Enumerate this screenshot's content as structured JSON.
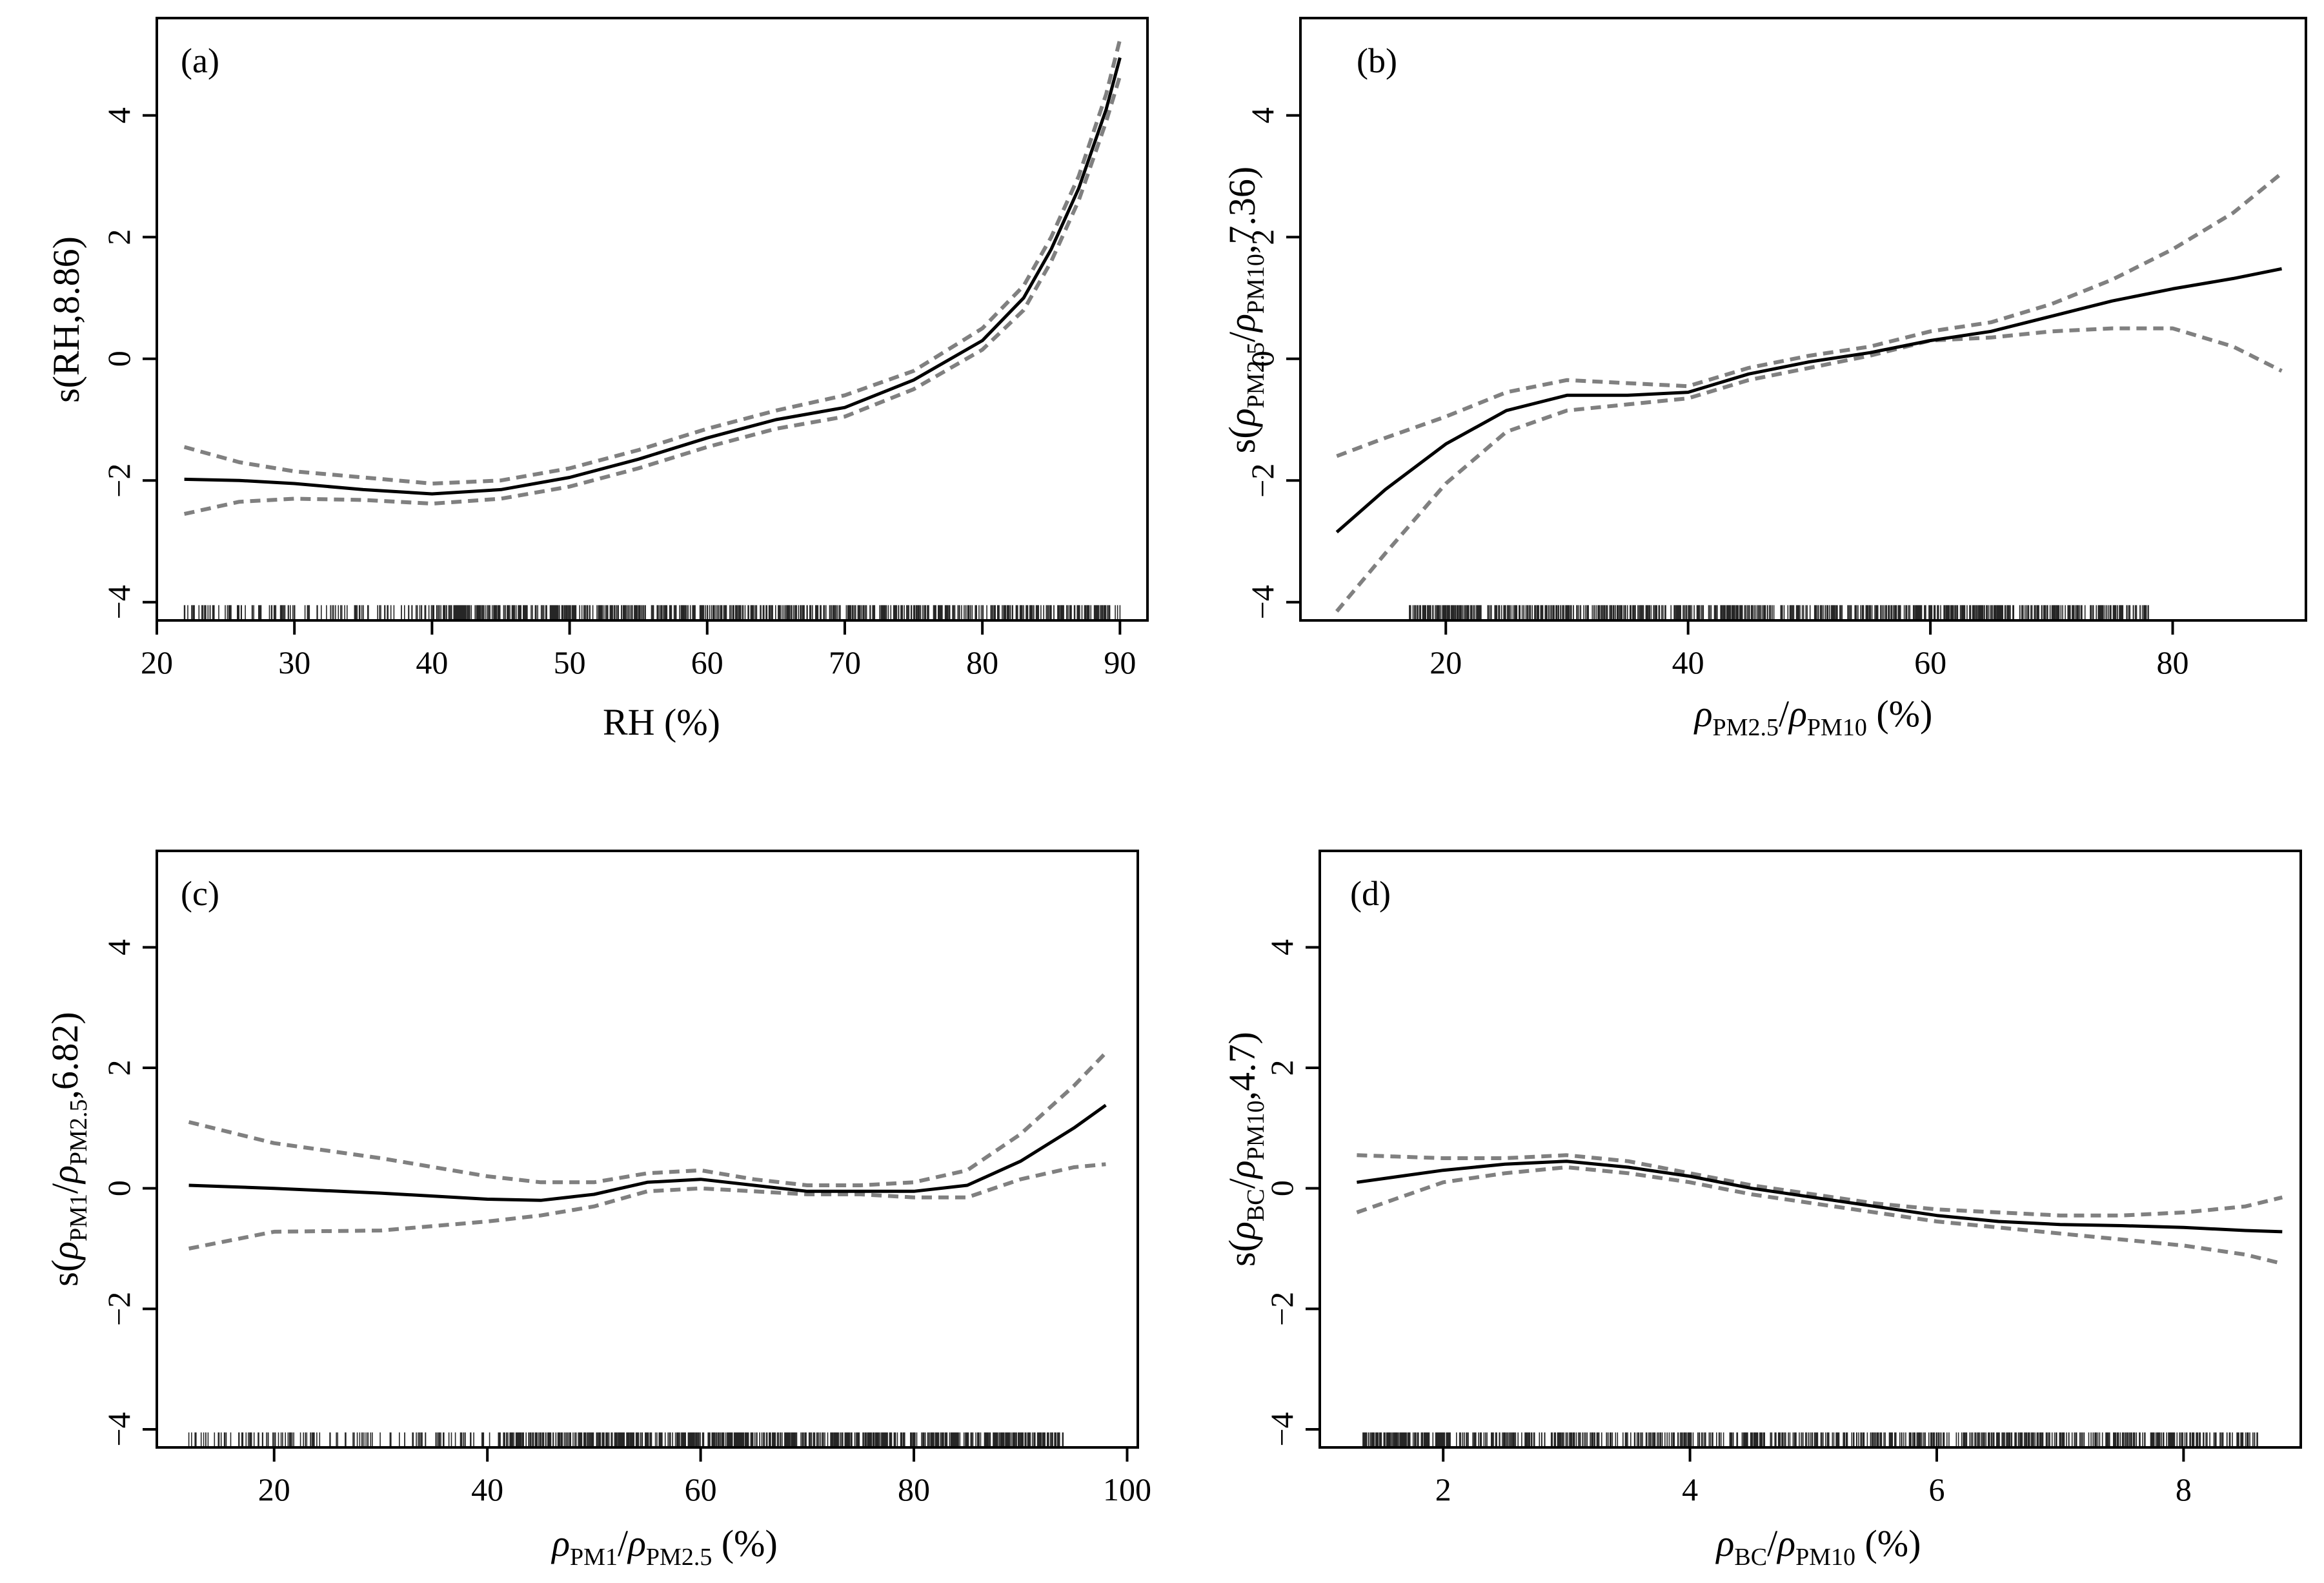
{
  "figure": {
    "description": "GAM smooth partial effect plots, four panels"
  },
  "chart_data": [
    {
      "type": "line",
      "panel": "(a)",
      "ylabel": "s(RH,8.86)",
      "xlabel": "RH (%)",
      "xlim": [
        20,
        92
      ],
      "ylim": [
        -4.3,
        5.6
      ],
      "xticks": [
        20,
        30,
        40,
        50,
        60,
        70,
        80,
        90
      ],
      "yticks": [
        -4,
        -2,
        0,
        2,
        4
      ],
      "yticks_labels": [
        "−4",
        "−2",
        "0",
        "2",
        "4"
      ],
      "fit": {
        "x": [
          22,
          26,
          30,
          35,
          40,
          45,
          50,
          55,
          60,
          65,
          70,
          75,
          80,
          83,
          85,
          87,
          89,
          90
        ],
        "y": [
          -1.98,
          -2.0,
          -2.05,
          -2.15,
          -2.22,
          -2.15,
          -1.95,
          -1.65,
          -1.3,
          -1.0,
          -0.8,
          -0.35,
          0.3,
          1.0,
          1.8,
          2.8,
          4.1,
          4.95
        ]
      },
      "upper": {
        "x": [
          22,
          26,
          30,
          35,
          40,
          45,
          50,
          55,
          60,
          65,
          70,
          75,
          80,
          83,
          85,
          87,
          89,
          90
        ],
        "y": [
          -1.45,
          -1.7,
          -1.85,
          -1.95,
          -2.05,
          -2.0,
          -1.8,
          -1.5,
          -1.15,
          -0.85,
          -0.6,
          -0.2,
          0.5,
          1.2,
          2.0,
          3.0,
          4.35,
          5.25
        ]
      },
      "lower": {
        "x": [
          22,
          26,
          30,
          35,
          40,
          45,
          50,
          55,
          60,
          65,
          70,
          75,
          80,
          83,
          85,
          87,
          89,
          90
        ],
        "y": [
          -2.55,
          -2.35,
          -2.3,
          -2.32,
          -2.38,
          -2.3,
          -2.1,
          -1.8,
          -1.45,
          -1.15,
          -0.95,
          -0.5,
          0.15,
          0.8,
          1.6,
          2.6,
          3.9,
          4.65
        ]
      },
      "rug": {
        "start": 22,
        "end": 90,
        "dense_from": 40
      }
    },
    {
      "type": "line",
      "panel": "(b)",
      "ylabel": "s(ρPM2.5/ρPM10,7.36)",
      "xlabel": "ρPM2.5/ρPM10 (%)",
      "xlim": [
        8,
        91
      ],
      "ylim": [
        -4.3,
        5.6
      ],
      "xticks": [
        20,
        40,
        60,
        80
      ],
      "yticks": [
        -4,
        -2,
        0,
        2,
        4
      ],
      "yticks_labels": [
        "−4",
        "−2",
        "0",
        "2",
        "4"
      ],
      "fit": {
        "x": [
          11,
          15,
          20,
          25,
          30,
          35,
          40,
          45,
          50,
          55,
          60,
          65,
          70,
          75,
          80,
          85,
          89
        ],
        "y": [
          -2.85,
          -2.15,
          -1.4,
          -0.85,
          -0.6,
          -0.6,
          -0.55,
          -0.25,
          -0.05,
          0.1,
          0.3,
          0.45,
          0.7,
          0.95,
          1.15,
          1.32,
          1.48
        ]
      },
      "upper": {
        "x": [
          11,
          15,
          20,
          25,
          30,
          35,
          40,
          45,
          50,
          55,
          60,
          65,
          70,
          75,
          80,
          85,
          89
        ],
        "y": [
          -1.6,
          -1.3,
          -0.95,
          -0.55,
          -0.35,
          -0.4,
          -0.45,
          -0.15,
          0.05,
          0.2,
          0.45,
          0.6,
          0.9,
          1.3,
          1.8,
          2.4,
          3.05
        ]
      },
      "lower": {
        "x": [
          11,
          15,
          20,
          25,
          30,
          35,
          40,
          45,
          50,
          55,
          60,
          65,
          70,
          75,
          80,
          85,
          89
        ],
        "y": [
          -4.15,
          -3.2,
          -2.05,
          -1.2,
          -0.85,
          -0.75,
          -0.65,
          -0.35,
          -0.15,
          0.05,
          0.3,
          0.35,
          0.45,
          0.5,
          0.5,
          0.2,
          -0.2
        ]
      },
      "rug": {
        "start": 17,
        "end": 78,
        "dense_from": 24
      }
    },
    {
      "type": "line",
      "panel": "(c)",
      "ylabel": "s(ρPM1/ρPM2.5,6.82)",
      "xlabel": "ρPM1/ρPM2.5 (%)",
      "xlim": [
        9,
        101
      ],
      "ylim": [
        -4.3,
        5.6
      ],
      "xticks": [
        20,
        40,
        60,
        80,
        100
      ],
      "yticks": [
        -4,
        -2,
        0,
        2,
        4
      ],
      "yticks_labels": [
        "−4",
        "−2",
        "0",
        "2",
        "4"
      ],
      "fit": {
        "x": [
          12,
          20,
          30,
          40,
          45,
          50,
          55,
          60,
          65,
          70,
          75,
          80,
          85,
          90,
          95,
          98
        ],
        "y": [
          0.05,
          0.0,
          -0.08,
          -0.18,
          -0.2,
          -0.1,
          0.1,
          0.15,
          0.05,
          -0.05,
          -0.05,
          -0.05,
          0.05,
          0.45,
          1.0,
          1.38
        ]
      },
      "upper": {
        "x": [
          12,
          20,
          30,
          40,
          45,
          50,
          55,
          60,
          65,
          70,
          75,
          80,
          85,
          90,
          95,
          98
        ],
        "y": [
          1.1,
          0.75,
          0.5,
          0.2,
          0.1,
          0.1,
          0.25,
          0.3,
          0.15,
          0.05,
          0.05,
          0.1,
          0.3,
          0.9,
          1.7,
          2.25
        ]
      },
      "lower": {
        "x": [
          12,
          20,
          30,
          40,
          45,
          50,
          55,
          60,
          65,
          70,
          75,
          80,
          85,
          90,
          95,
          98
        ],
        "y": [
          -1.0,
          -0.72,
          -0.7,
          -0.55,
          -0.45,
          -0.3,
          -0.05,
          0.0,
          -0.05,
          -0.1,
          -0.1,
          -0.15,
          -0.15,
          0.15,
          0.35,
          0.4
        ]
      },
      "rug": {
        "start": 12,
        "end": 94,
        "dense_from": 41
      }
    },
    {
      "type": "line",
      "panel": "(d)",
      "ylabel": "s(ρBC/ρPM10,4.7)",
      "xlabel": "ρBC/ρPM10 (%)",
      "xlim": [
        1.0,
        8.95
      ],
      "ylim": [
        -4.3,
        5.6
      ],
      "xticks": [
        2,
        4,
        6,
        8
      ],
      "yticks": [
        -4,
        -2,
        0,
        2,
        4
      ],
      "yticks_labels": [
        "−4",
        "−2",
        "0",
        "2",
        "4"
      ],
      "fit": {
        "x": [
          1.3,
          2.0,
          2.5,
          3.0,
          3.5,
          4.0,
          4.5,
          5.0,
          5.5,
          6.0,
          6.5,
          7.0,
          7.5,
          8.0,
          8.5,
          8.8
        ],
        "y": [
          0.1,
          0.3,
          0.4,
          0.45,
          0.35,
          0.2,
          0.0,
          -0.15,
          -0.3,
          -0.45,
          -0.55,
          -0.6,
          -0.62,
          -0.65,
          -0.7,
          -0.72
        ]
      },
      "upper": {
        "x": [
          1.3,
          2.0,
          2.5,
          3.0,
          3.5,
          4.0,
          4.5,
          5.0,
          5.5,
          6.0,
          6.5,
          7.0,
          7.5,
          8.0,
          8.5,
          8.8
        ],
        "y": [
          0.55,
          0.5,
          0.5,
          0.55,
          0.45,
          0.25,
          0.05,
          -0.1,
          -0.25,
          -0.35,
          -0.4,
          -0.45,
          -0.45,
          -0.4,
          -0.3,
          -0.15
        ]
      },
      "lower": {
        "x": [
          1.3,
          2.0,
          2.5,
          3.0,
          3.5,
          4.0,
          4.5,
          5.0,
          5.5,
          6.0,
          6.5,
          7.0,
          7.5,
          8.0,
          8.5,
          8.8
        ],
        "y": [
          -0.4,
          0.1,
          0.25,
          0.35,
          0.25,
          0.1,
          -0.1,
          -0.25,
          -0.4,
          -0.55,
          -0.65,
          -0.75,
          -0.85,
          -0.95,
          -1.1,
          -1.25
        ]
      },
      "rug": {
        "start": 1.35,
        "end": 8.6,
        "dense_from": 1.9
      }
    }
  ]
}
